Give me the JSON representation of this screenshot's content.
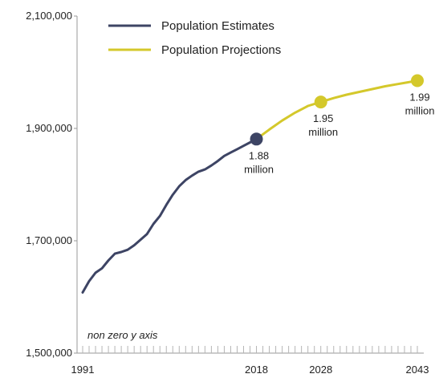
{
  "chart_data": {
    "type": "line",
    "title": "",
    "xlabel": "",
    "ylabel": "",
    "xlim": [
      1991,
      2043
    ],
    "ylim": [
      1500000,
      2100000
    ],
    "x_ticks": [
      {
        "value": 1991,
        "label": "1991"
      },
      {
        "value": 2018,
        "label": "2018"
      },
      {
        "value": 2028,
        "label": "2028"
      },
      {
        "value": 2043,
        "label": "2043"
      }
    ],
    "y_ticks": [
      {
        "value": 1500000,
        "label": "1,500,000"
      },
      {
        "value": 1700000,
        "label": "1,700,000"
      },
      {
        "value": 1900000,
        "label": "1,900,000"
      },
      {
        "value": 2100000,
        "label": "2,100,000"
      }
    ],
    "grid": false,
    "legend_position": "top-left",
    "note": "non zero y axis",
    "series": [
      {
        "name": "Population Estimates",
        "color": "#3d4464",
        "x": [
          1991,
          1992,
          1993,
          1994,
          1995,
          1996,
          1997,
          1998,
          1999,
          2000,
          2001,
          2002,
          2003,
          2004,
          2005,
          2006,
          2007,
          2008,
          2009,
          2010,
          2011,
          2012,
          2013,
          2014,
          2015,
          2016,
          2017,
          2018
        ],
        "y": [
          1608000,
          1628000,
          1643000,
          1651000,
          1665000,
          1677000,
          1680000,
          1684000,
          1692000,
          1702000,
          1712000,
          1730000,
          1744000,
          1764000,
          1782000,
          1797000,
          1808000,
          1816000,
          1823000,
          1827000,
          1834000,
          1842000,
          1851000,
          1857000,
          1863000,
          1869000,
          1875000,
          1881000
        ]
      },
      {
        "name": "Population Projections",
        "color": "#d4c82b",
        "x": [
          2018,
          2020,
          2022,
          2024,
          2026,
          2028,
          2030,
          2032,
          2034,
          2036,
          2038,
          2040,
          2042,
          2043
        ],
        "y": [
          1881000,
          1898000,
          1914000,
          1928000,
          1940000,
          1947000,
          1954000,
          1960000,
          1965000,
          1970000,
          1975000,
          1979000,
          1983000,
          1985000
        ]
      }
    ],
    "markers": [
      {
        "x": 2018,
        "y": 1881000,
        "series": 0,
        "label_lines": [
          "1.88",
          "million"
        ]
      },
      {
        "x": 2028,
        "y": 1947000,
        "series": 1,
        "label_lines": [
          "1.95",
          "million"
        ]
      },
      {
        "x": 2043,
        "y": 1985000,
        "series": 1,
        "label_lines": [
          "1.99",
          "million"
        ]
      }
    ]
  }
}
